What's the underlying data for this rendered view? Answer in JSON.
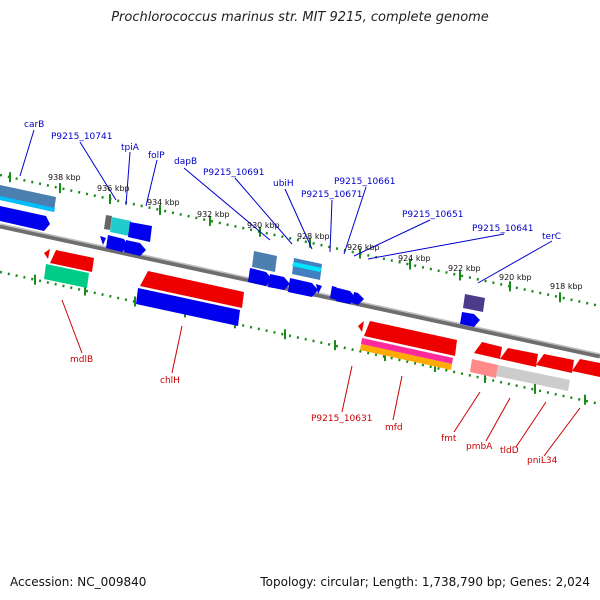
{
  "title": "Prochlorococcus marinus str. MIT 9215, complete genome",
  "footer": {
    "accession": "Accession: NC_009840",
    "topology": "Topology: circular; Length: 1,738,790 bp; Genes: 2,024"
  },
  "colors": {
    "plus_label": "#0000cc",
    "minus_label": "#cc0000",
    "backbone": "#7a7a7a",
    "tick": "#1a8a1a"
  },
  "scale_labels": [
    "938 kbp",
    "936 kbp",
    "934 kbp",
    "932 kbp",
    "930 kbp",
    "928 kbp",
    "926 kbp",
    "924 kbp",
    "922 kbp",
    "920 kbp",
    "918 kbp"
  ],
  "plus_labels": [
    "carB",
    "P9215_10741",
    "tpiA",
    "folP",
    "dapB",
    "P9215_10691",
    "ubiH",
    "P9215_10671",
    "P9215_10661",
    "P9215_10651",
    "P9215_10641",
    "terC"
  ],
  "minus_labels": [
    "mdlB",
    "chlH",
    "P9215_10631",
    "mfd",
    "fmt",
    "pmbA",
    "tldD",
    "pniL34"
  ]
}
